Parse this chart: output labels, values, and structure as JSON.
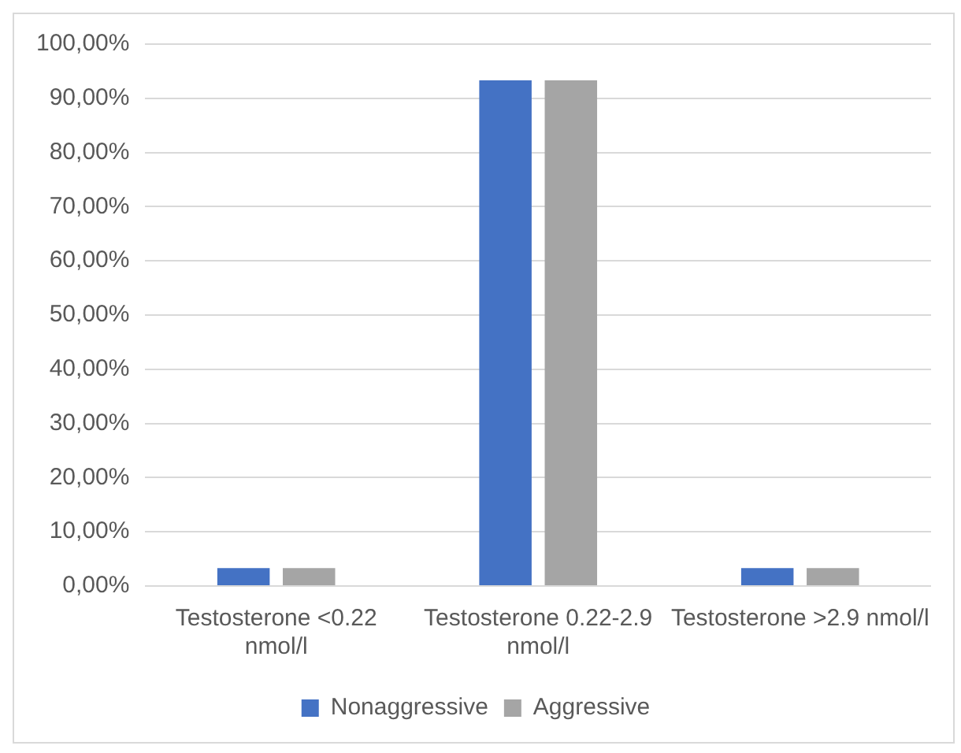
{
  "chart_data": {
    "type": "bar",
    "categories": [
      "Testosterone <0.22 nmol/l",
      "Testosterone 0.22-2.9 nmol/l",
      "Testosterone >2.9 nmol/l"
    ],
    "series": [
      {
        "name": "Nonaggressive",
        "color": "#4472c4",
        "values": [
          3.3,
          93.3,
          3.3
        ]
      },
      {
        "name": "Aggressive",
        "color": "#a5a5a5",
        "values": [
          3.3,
          93.3,
          3.3
        ]
      }
    ],
    "ylim": [
      0,
      100
    ],
    "yticks": [
      {
        "value": 0,
        "label": "0,00%"
      },
      {
        "value": 10,
        "label": "10,00%"
      },
      {
        "value": 20,
        "label": "20,00%"
      },
      {
        "value": 30,
        "label": "30,00%"
      },
      {
        "value": 40,
        "label": "40,00%"
      },
      {
        "value": 50,
        "label": "50,00%"
      },
      {
        "value": 60,
        "label": "60,00%"
      },
      {
        "value": 70,
        "label": "70,00%"
      },
      {
        "value": 80,
        "label": "80,00%"
      },
      {
        "value": 90,
        "label": "90,00%"
      },
      {
        "value": 100,
        "label": "100,00%"
      }
    ],
    "grid": "y",
    "legend": "bottom"
  }
}
